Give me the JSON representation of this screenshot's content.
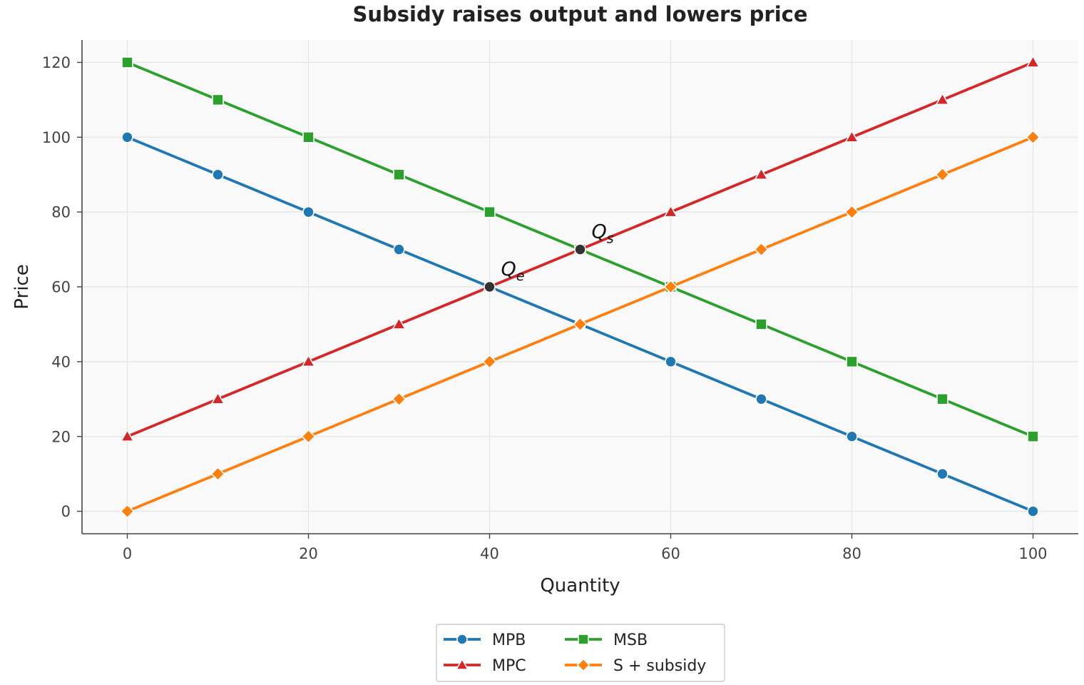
{
  "chart_data": {
    "type": "line",
    "title": "Subsidy raises output and lowers price",
    "xlabel": "Quantity",
    "ylabel": "Price",
    "xlim": [
      -5,
      105
    ],
    "ylim": [
      -6,
      126
    ],
    "x_ticks": [
      0,
      20,
      40,
      60,
      80,
      100
    ],
    "y_ticks": [
      0,
      20,
      40,
      60,
      80,
      100,
      120
    ],
    "grid": true,
    "legend_position": "bottom-center",
    "x": [
      0,
      10,
      20,
      30,
      40,
      50,
      60,
      70,
      80,
      90,
      100
    ],
    "series": [
      {
        "name": "MPB",
        "color": "#1f77b4",
        "marker": "circle",
        "values": [
          100,
          90,
          80,
          70,
          60,
          50,
          40,
          30,
          20,
          10,
          0
        ]
      },
      {
        "name": "MSB",
        "color": "#2ca02c",
        "marker": "square",
        "values": [
          120,
          110,
          100,
          90,
          80,
          70,
          60,
          50,
          40,
          30,
          20
        ]
      },
      {
        "name": "MPC",
        "color": "#d62728",
        "marker": "triangle",
        "values": [
          20,
          30,
          40,
          50,
          60,
          70,
          80,
          90,
          100,
          110,
          120
        ]
      },
      {
        "name": "S + subsidy",
        "color": "#ff7f0e",
        "marker": "diamond",
        "values": [
          0,
          10,
          20,
          30,
          40,
          50,
          60,
          70,
          80,
          90,
          100
        ]
      }
    ],
    "annotations": [
      {
        "label": "Q",
        "subscript": "e",
        "x": 40,
        "y": 60,
        "color": "#333333"
      },
      {
        "label": "Q",
        "subscript": "s",
        "x": 50,
        "y": 70,
        "color": "#333333"
      }
    ]
  }
}
